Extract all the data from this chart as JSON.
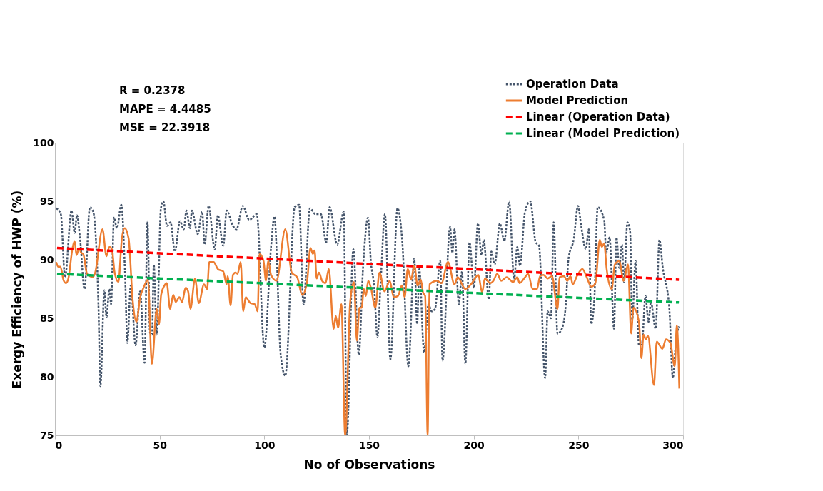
{
  "chart_data": {
    "type": "line",
    "xlabel": "No of Observations",
    "ylabel": "Exergy Efficiency of HWP (%)",
    "xlim": [
      0,
      300
    ],
    "xticks": [
      0,
      50,
      100,
      150,
      200,
      250,
      300
    ],
    "ylim": [
      75,
      100
    ],
    "yticks": [
      75,
      80,
      85,
      90,
      95,
      100
    ],
    "grid": false,
    "legend": "top right",
    "marker": "none",
    "annotations": [
      "R = 0.2378",
      "MAPE = 4.4485",
      "MSE = 22.3918"
    ],
    "series": [
      {
        "name": "Operation Data",
        "color": "#44546a",
        "line_style": "dotted",
        "x": [
          0.6,
          2.8,
          4.8,
          7.9,
          9.4,
          10.5,
          12,
          14.1,
          16.7,
          18.3,
          20.8,
          21.7,
          23.6,
          24.6,
          26,
          26.8,
          28.2,
          29.6,
          31.7,
          33.5,
          34.6,
          36.2,
          38.5,
          40.7,
          42.8,
          44.2,
          45.4,
          46.4,
          47.2,
          48.6,
          50.6,
          51.8,
          53.5,
          55.2,
          57.3,
          59.7,
          61.5,
          62.8,
          64.5,
          65.4,
          68.2,
          70.3,
          71.5,
          73.4,
          76.3,
          77.8,
          80.4,
          82,
          85,
          86.7,
          89.7,
          92.8,
          96.4,
          100,
          103.3,
          104.8,
          107.8,
          110,
          114.5,
          116.6,
          118.7,
          121.8,
          124.4,
          127,
          129.6,
          131.2,
          134.8,
          137.9,
          139.4,
          142.5,
          145.1,
          147.2,
          149.5,
          150.9,
          152.4,
          154,
          155.6,
          157.6,
          160.2,
          163.6,
          165.9,
          168.8,
          171.6,
          173,
          174,
          176.3,
          178.4,
          179.9,
          181.5,
          184,
          185.1,
          188.7,
          189.8,
          190.8,
          192.9,
          194.4,
          196,
          198,
          200.1,
          202,
          203.7,
          204.8,
          207.2,
          208.4,
          210,
          212.5,
          214.6,
          216.9,
          219.3,
          220.8,
          222.1,
          224.5,
          227,
          229.6,
          231.2,
          234.1,
          235.3,
          236.9,
          238.2,
          240,
          242.1,
          244.1,
          245.2,
          247.8,
          249.8,
          251.4,
          253.5,
          255,
          256.1,
          257.6,
          259.2,
          262.3,
          263.3,
          264.9,
          267,
          268.2,
          269.5,
          270.8,
          271.8,
          273.4,
          274.7,
          275.7,
          277.3,
          278.9,
          280.4,
          282,
          283.5,
          284.6,
          286.9,
          288.7,
          290.3,
          293.4,
          295.1,
          296.7,
          298
        ],
        "values": [
          94.4,
          93.9,
          88.5,
          94.2,
          92.3,
          93.8,
          91.8,
          87.5,
          94.5,
          94.1,
          85.9,
          79.2,
          87.4,
          85.1,
          87.5,
          86.2,
          93.6,
          92.7,
          94.7,
          88.7,
          82.9,
          87.8,
          82.7,
          87.3,
          81.2,
          93.3,
          83.8,
          83.6,
          89.6,
          83.6,
          94.4,
          95.0,
          92.9,
          93.2,
          90.7,
          93.3,
          92.6,
          94.2,
          92.7,
          94.2,
          92.2,
          94.1,
          91.3,
          94.6,
          90.9,
          93.8,
          91.2,
          94.2,
          92.9,
          92.6,
          94.6,
          93.4,
          93.9,
          82.5,
          91.3,
          93.7,
          81.9,
          80.1,
          94.5,
          94.7,
          86.2,
          94.4,
          93.9,
          93.9,
          91.5,
          94.5,
          91.3,
          94.1,
          75.0,
          90.9,
          81.9,
          89.5,
          93.6,
          89.8,
          87.8,
          83.4,
          88.2,
          93.9,
          81.5,
          94.4,
          91.5,
          80.9,
          90.1,
          84.5,
          89.2,
          82.1,
          86.2,
          85.6,
          85.8,
          89.9,
          81.4,
          92.8,
          90.6,
          92.6,
          86.2,
          89.0,
          81.1,
          91.5,
          87.6,
          93.1,
          90.4,
          91.7,
          86.6,
          90.7,
          89.6,
          93.1,
          91.6,
          95.0,
          88.3,
          91.1,
          89.5,
          94.1,
          95.0,
          91.5,
          91.2,
          79.9,
          85.6,
          85.0,
          93.2,
          83.7,
          84.1,
          86.4,
          90.0,
          91.8,
          94.6,
          92.8,
          90.9,
          92.6,
          84.5,
          86.6,
          94.5,
          93.4,
          90.6,
          91.9,
          84.1,
          91.9,
          89.3,
          91.3,
          88.1,
          93.2,
          92.4,
          84.9,
          89.9,
          82.7,
          82.9,
          86.9,
          84.7,
          86.4,
          84.1,
          91.7,
          89.3,
          85.9,
          79.9,
          83.3,
          84.3
        ]
      },
      {
        "name": "Model Prediction",
        "color": "#ed7d31",
        "line_style": "solid",
        "x": [
          0.6,
          1.6,
          2.6,
          4.2,
          5.3,
          6.4,
          8.4,
          9.4,
          10.3,
          11.5,
          12.5,
          13.5,
          15.3,
          16.6,
          18.1,
          19.2,
          22.7,
          24.6,
          26,
          27.2,
          28.5,
          30.3,
          32,
          33.3,
          35.2,
          37.1,
          38.9,
          40.7,
          42.3,
          44.4,
          46.3,
          48.6,
          49.7,
          50.7,
          52.3,
          53.4,
          55,
          56.5,
          57.7,
          59.4,
          60.7,
          62.4,
          63.6,
          64.7,
          66.9,
          68.7,
          71.2,
          72.7,
          73.7,
          75.8,
          77.8,
          80.4,
          82,
          82.5,
          83.9,
          85,
          86.2,
          87.2,
          88.7,
          89.9,
          91.1,
          93.3,
          95.4,
          96.8,
          97.7,
          99.6,
          100.8,
          101.9,
          103.2,
          105.8,
          110,
          113.1,
          115.7,
          118.1,
          120.4,
          122,
          123.2,
          124,
          125,
          126.1,
          127.6,
          129.2,
          130.8,
          133.1,
          134.1,
          135.2,
          136.8,
          138.6,
          141,
          142.8,
          144.2,
          145.4,
          146.5,
          147.5,
          148.5,
          149.6,
          150.9,
          153,
          155,
          157.4,
          159.9,
          161.8,
          163.8,
          165.7,
          167,
          168.5,
          170.1,
          171.6,
          173.2,
          174.7,
          175.8,
          176.8,
          178,
          178.9,
          182.5,
          184.6,
          187.7,
          190.8,
          192.3,
          196,
          199.1,
          202.2,
          204,
          205.3,
          207.9,
          209.4,
          211.2,
          213.1,
          215.7,
          218.8,
          220.8,
          221.9,
          224.5,
          226,
          228.1,
          230.2,
          231.7,
          233.3,
          235.3,
          237.4,
          240,
          241,
          243.1,
          244.7,
          246.2,
          247.3,
          249.3,
          251.9,
          254,
          256.1,
          258.1,
          260.2,
          261.2,
          262.3,
          263.5,
          265.9,
          267.4,
          269.5,
          271.6,
          273.7,
          275.2,
          276.3,
          278.9,
          280.1,
          281.1,
          282.2,
          283.2,
          286.1,
          287.4,
          290.1,
          291.8,
          293.9,
          296,
          297,
          298.2
        ],
        "values": [
          89.8,
          89.4,
          89.4,
          88.2,
          88.0,
          88.4,
          91.0,
          91.6,
          90.4,
          91.0,
          90.6,
          90.5,
          88.8,
          88.6,
          88.5,
          88.9,
          92.6,
          90.3,
          91.1,
          90.9,
          88.9,
          88.1,
          91.9,
          92.7,
          91.8,
          86.6,
          84.7,
          86.8,
          87.6,
          88.3,
          81.1,
          85.8,
          84.5,
          87.0,
          87.8,
          88.0,
          85.8,
          87.0,
          86.4,
          86.8,
          86.4,
          87.6,
          87.3,
          85.8,
          88.4,
          86.3,
          87.9,
          87.5,
          89.8,
          89.8,
          89.2,
          89.0,
          87.9,
          88.6,
          86.1,
          88.7,
          88.9,
          88.8,
          89.8,
          85.6,
          86.8,
          86.3,
          86.2,
          85.6,
          90.5,
          89.9,
          88.2,
          89.9,
          88.7,
          88.2,
          92.6,
          88.9,
          88.5,
          87.0,
          88.1,
          91.0,
          90.5,
          90.8,
          88.4,
          88.9,
          88.2,
          88.0,
          89.2,
          84.1,
          85.2,
          84.2,
          86.2,
          75.0,
          86.4,
          88.1,
          83.1,
          85.9,
          85.9,
          87.5,
          86.9,
          88.2,
          87.6,
          85.9,
          88.9,
          87.3,
          88.2,
          86.8,
          86.9,
          87.8,
          86.8,
          89.2,
          88.3,
          89.5,
          87.8,
          88.3,
          87.2,
          86.9,
          75.0,
          87.9,
          88.2,
          88.0,
          89.8,
          87.9,
          88.5,
          87.5,
          88.0,
          88.7,
          87.2,
          88.4,
          88.0,
          88.2,
          88.8,
          88.2,
          88.5,
          88.1,
          88.5,
          88.0,
          88.5,
          88.8,
          87.5,
          87.5,
          88.6,
          88.7,
          88.4,
          88.6,
          85.8,
          88.5,
          88.6,
          88.2,
          88.6,
          87.9,
          88.6,
          89.2,
          88.5,
          87.7,
          88.0,
          91.7,
          91.1,
          91.4,
          89.2,
          87.5,
          89.6,
          89.9,
          88.2,
          89.6,
          83.7,
          85.9,
          84.7,
          81.6,
          83.6,
          83.2,
          83.5,
          79.3,
          83.0,
          82.4,
          83.2,
          82.9,
          80.9,
          84.4,
          79.0
        ]
      },
      {
        "name": "Linear (Operation Data)",
        "color": "#ff0000",
        "line_style": "dashed",
        "x": [
          1,
          298
        ],
        "values": [
          91.0,
          88.3
        ]
      },
      {
        "name": "Linear (Model Prediction)",
        "color": "#00b050",
        "line_style": "dashed",
        "x": [
          1,
          298
        ],
        "values": [
          88.8,
          86.35
        ]
      }
    ]
  }
}
